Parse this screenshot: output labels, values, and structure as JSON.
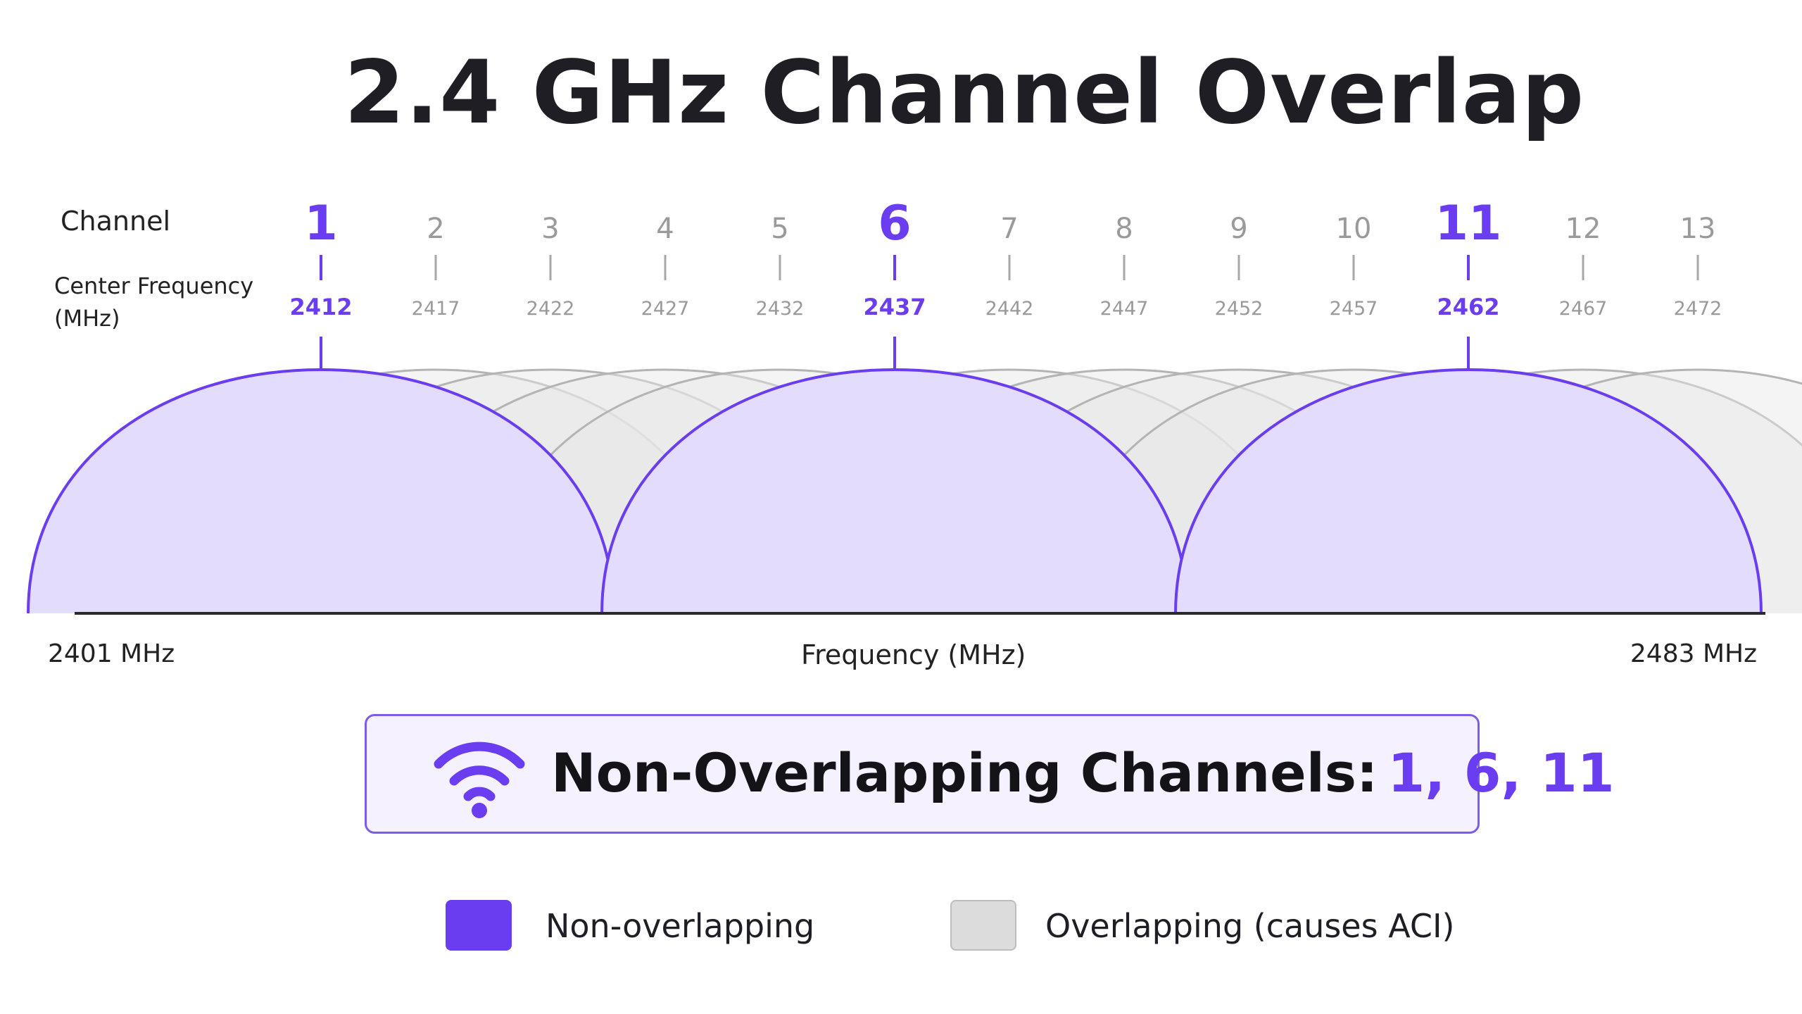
{
  "title": "2.4 GHz Channel Overlap",
  "row_labels": {
    "channel": "Channel",
    "center_frequency_line1": "Center Frequency",
    "center_frequency_line2": "(MHz)"
  },
  "axis": {
    "min_label": "2401 MHz",
    "max_label": "2483 MHz",
    "label": "Frequency (MHz)",
    "range_mhz": [
      2401,
      2483
    ]
  },
  "colors": {
    "highlight": "#6a3df0",
    "highlight_fill": "#e4dcfc",
    "overlap_stroke": "#b4b4b4",
    "overlap_fill": "#e6e6e6",
    "muted_text": "#9a9a9a"
  },
  "chart_data": {
    "type": "area",
    "channel_width_mhz": 22,
    "channels": [
      {
        "channel": "1",
        "center_mhz": 2412,
        "frequency_label": "2412",
        "non_overlapping": true
      },
      {
        "channel": "2",
        "center_mhz": 2417,
        "frequency_label": "2417",
        "non_overlapping": false
      },
      {
        "channel": "3",
        "center_mhz": 2422,
        "frequency_label": "2422",
        "non_overlapping": false
      },
      {
        "channel": "4",
        "center_mhz": 2427,
        "frequency_label": "2427",
        "non_overlapping": false
      },
      {
        "channel": "5",
        "center_mhz": 2432,
        "frequency_label": "2432",
        "non_overlapping": false
      },
      {
        "channel": "6",
        "center_mhz": 2437,
        "frequency_label": "2437",
        "non_overlapping": true
      },
      {
        "channel": "7",
        "center_mhz": 2442,
        "frequency_label": "2442",
        "non_overlapping": false
      },
      {
        "channel": "8",
        "center_mhz": 2447,
        "frequency_label": "2447",
        "non_overlapping": false
      },
      {
        "channel": "9",
        "center_mhz": 2452,
        "frequency_label": "2452",
        "non_overlapping": false
      },
      {
        "channel": "10",
        "center_mhz": 2457,
        "frequency_label": "2457",
        "non_overlapping": false
      },
      {
        "channel": "11",
        "center_mhz": 2462,
        "frequency_label": "2462",
        "non_overlapping": true
      },
      {
        "channel": "12",
        "center_mhz": 2467,
        "frequency_label": "2467",
        "non_overlapping": false
      },
      {
        "channel": "13",
        "center_mhz": 2472,
        "frequency_label": "2472",
        "non_overlapping": false
      }
    ]
  },
  "callout": {
    "icon": "wifi-icon",
    "label": "Non-Overlapping Channels:",
    "values": "1, 6, 11"
  },
  "legend": [
    {
      "key": "non-overlap",
      "label": "Non-overlapping",
      "color": "#6a3df0"
    },
    {
      "key": "overlap",
      "label": "Overlapping (causes ACI)",
      "color": "#dcdcdc"
    }
  ]
}
